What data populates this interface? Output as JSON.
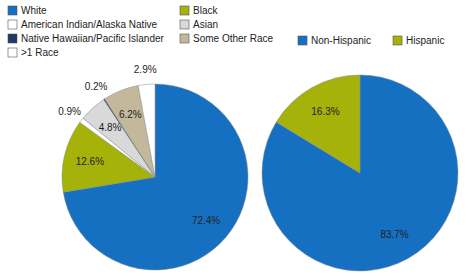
{
  "chart_data": [
    {
      "type": "pie",
      "categories": [
        "White",
        "Black",
        "American Indian/Alaska Native",
        "Asian",
        "Native Hawaiian/Pacific Islander",
        "Some Other Race",
        ">1 Race"
      ],
      "values": [
        72.4,
        12.6,
        0.9,
        4.8,
        0.2,
        6.2,
        2.9
      ],
      "value_labels": [
        "72.4%",
        "12.6%",
        "0.9%",
        "4.8%",
        "0.2%",
        "6.2%",
        "2.9%"
      ],
      "colors": [
        "#1670c2",
        "#a4b20a",
        "#ffffff",
        "#d9d9d9",
        "#1f3864",
        "#c3b89c",
        "#ffffff"
      ],
      "data_labels": true,
      "legend": "top-left"
    },
    {
      "type": "pie",
      "categories": [
        "Non-Hispanic",
        "Hispanic"
      ],
      "values": [
        83.7,
        16.3
      ],
      "value_labels": [
        "83.7%",
        "16.3%"
      ],
      "colors": [
        "#1670c2",
        "#a4b20a"
      ],
      "data_labels": true,
      "legend": "top"
    }
  ]
}
